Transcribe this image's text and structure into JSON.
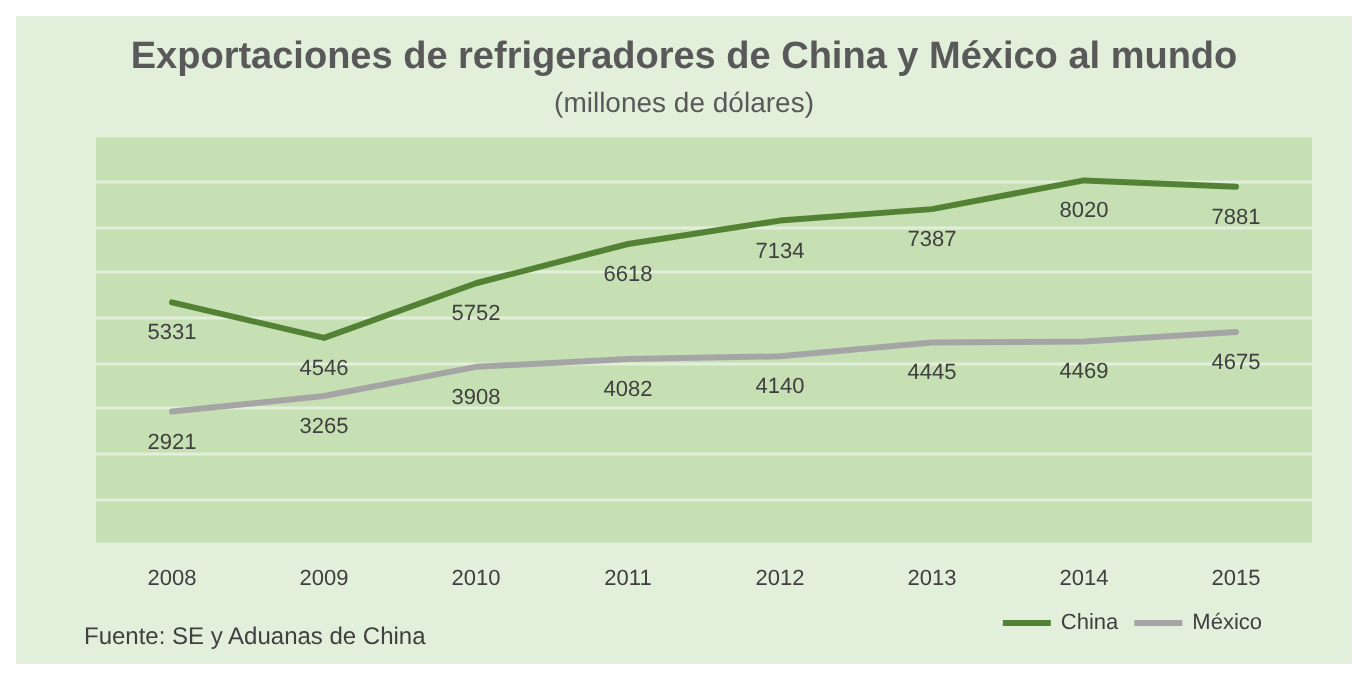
{
  "chart_data": {
    "type": "line",
    "title": "Exportaciones de refrigeradores de China y México al mundo",
    "subtitle": "(millones de dólares)",
    "categories": [
      "2008",
      "2009",
      "2010",
      "2011",
      "2012",
      "2013",
      "2014",
      "2015"
    ],
    "series": [
      {
        "name": "China",
        "color": "#548235",
        "values": [
          5331,
          4546,
          5752,
          6618,
          7134,
          7387,
          8020,
          7881
        ]
      },
      {
        "name": "México",
        "color": "#a5a5a5",
        "values": [
          2921,
          3265,
          3908,
          4082,
          4140,
          4445,
          4469,
          4675
        ]
      }
    ],
    "ylim": [
      0,
      9000
    ],
    "yticks": [
      {
        "value": 0,
        "label": null
      },
      {
        "value": 1000,
        "label": null
      },
      {
        "value": 2000,
        "label": null
      },
      {
        "value": 3000,
        "label": null
      },
      {
        "value": 4000,
        "label": null
      },
      {
        "value": 5000,
        "label": null
      },
      {
        "value": 6000,
        "label": null
      },
      {
        "value": 7000,
        "label": null
      },
      {
        "value": 8000,
        "label": null
      },
      {
        "value": 9000,
        "label": null
      }
    ],
    "tick_labels": "x",
    "grid": "y",
    "legend": "bottom right",
    "data_labels": true,
    "marker": "none",
    "line_style": "solid",
    "annotations": [
      "Fuente: SE y Aduanas de China"
    ]
  }
}
